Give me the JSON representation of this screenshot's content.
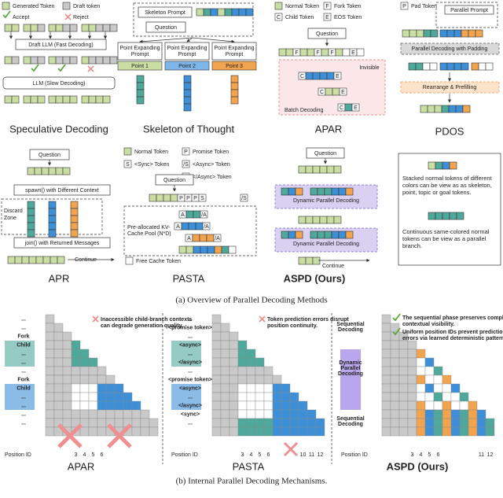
{
  "overview": {
    "caption": "(a) Overview of Parallel Decoding Methods",
    "speculative": {
      "title": "Speculative Decoding",
      "generated": "Generated Token",
      "draft_token": "Draft token",
      "accept": "Accept",
      "reject": "Reject",
      "draft_llm": "Draft LLM (Fast Decoding)",
      "llm": "LLM (Slow Decoding)"
    },
    "skeleton": {
      "title": "Skeleton of Thought",
      "prompt": "Skeleton Prompt",
      "question": "Question",
      "expanding": [
        "Point Expanding",
        "Prompt"
      ],
      "points": [
        "Point 1",
        "Point 2",
        "Point 3"
      ]
    },
    "apar": {
      "title": "APAR",
      "normal": "Normal Token",
      "fork_letter": "F",
      "fork": "Fork Token",
      "child_letter": "C",
      "child": "Child Token",
      "eos_letter": "E",
      "eos": "EOS Token",
      "question": "Question",
      "invisible": "Invisible",
      "batch": "Batch Decoding"
    },
    "pdos": {
      "title": "PDOS",
      "pad_letter": "P",
      "pad": "Pad Token",
      "prompt": "Parallel Prompt",
      "decoding": "Parallel Decoding with Padding",
      "rearrange": "Rearrange & Prefilling"
    },
    "apr": {
      "title": "APR",
      "question": "Question",
      "spawn": "spawn() with Different Context",
      "discard": [
        "Discard",
        "Zone"
      ],
      "join": "join() with Returned Messages",
      "continue": "Continue"
    },
    "pasta": {
      "title": "PASTA",
      "normal": "Normal Token",
      "promise_letter": "P",
      "promise": "Promise Token",
      "sync_letter": "S",
      "sync": "<Sync> Token",
      "async_letter": "/S",
      "async": "<Async> Token",
      "end_async_letter": "A",
      "end_async": "</Async> Token",
      "close_letter": "/A",
      "question": "Question",
      "pool": [
        "Pre-allocated KV-",
        "Cache Pool (N*D)"
      ],
      "free": "Free Cache Token"
    },
    "aspd": {
      "title": "ASPD (Ours)",
      "question": "Question",
      "dynamic": "Dynamic Parallel Decoding",
      "continue": "Continue"
    },
    "notes": [
      "Stacked normal tokens of different colors can be view as as skeleton, point, topic or goal tokens.",
      "Continuous same-colored normal tokens can be view as a parallel branch."
    ]
  },
  "mechanisms": {
    "caption": "(b) Internal Parallel Decoding Mechanisms.",
    "position_label": "Position ID",
    "apar": {
      "title": "APAR",
      "note": [
        "Inaccessible child-branch contexts",
        "can degrade generation quality."
      ],
      "rows": [
        "...",
        "...",
        "Fork",
        "Child",
        "...",
        "...",
        "...",
        "Fork",
        "Child",
        "...",
        "...",
        "...",
        "..."
      ],
      "ids": [
        "3",
        "4",
        "5",
        "6"
      ]
    },
    "pasta": {
      "title": "PASTA",
      "note": [
        "Token prediction errors disrupt",
        "position continuity."
      ],
      "rows": [
        "...",
        "<promise token>",
        "...",
        "<async>",
        "...",
        "</async>",
        "...",
        "<promise token>",
        "<async>",
        "...",
        "</async>",
        "<sync>",
        "..."
      ],
      "ids": [
        "3",
        "4",
        "5",
        "6",
        "10",
        "11",
        "12"
      ]
    },
    "aspd": {
      "title": "ASPD (Ours)",
      "notes": [
        [
          "The sequential phase preserves complete",
          "contextual visibility."
        ],
        [
          "Uniform position IDs prevent prediction",
          "errors via learned deterministic patterns."
        ]
      ],
      "seq": [
        "Sequential",
        "Decoding"
      ],
      "dyn": [
        "Dynamic",
        "Parallel",
        "Decoding"
      ],
      "ids": [
        "3",
        "4",
        "5",
        "6",
        "11",
        "12"
      ]
    }
  }
}
